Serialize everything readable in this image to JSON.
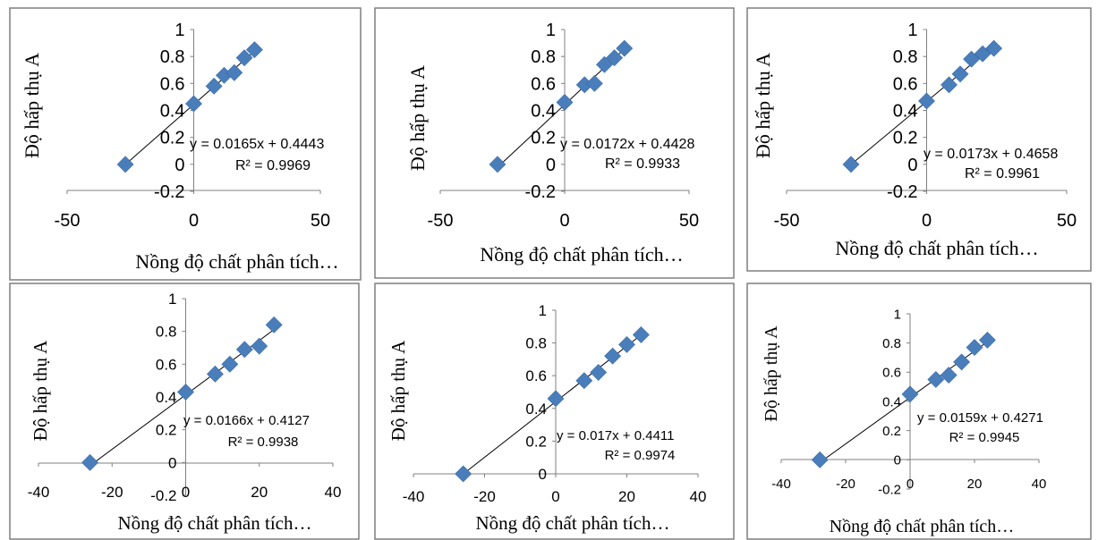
{
  "chart_data": [
    {
      "type": "scatter",
      "xlabel": "Nồng độ chất phân tích…",
      "ylabel": "Độ hấp thụ A",
      "xlim": [
        -50,
        50
      ],
      "ylim": [
        -0.2,
        1
      ],
      "x_ticks": [
        "-50",
        "0",
        "50"
      ],
      "y_ticks": [
        "-0.2",
        "0",
        "0.2",
        "0.4",
        "0.6",
        "0.8",
        "1"
      ],
      "points": [
        [
          -27,
          0
        ],
        [
          0,
          0.45
        ],
        [
          8,
          0.58
        ],
        [
          12,
          0.66
        ],
        [
          16,
          0.68
        ],
        [
          20,
          0.79
        ],
        [
          24,
          0.85
        ]
      ],
      "trendline": {
        "slope": 0.0165,
        "intercept": 0.4443
      },
      "equation": "y = 0.0165x + 0.4443",
      "r2": "R² = 0.9969",
      "grid": false,
      "marker_color": "#4a7ebb"
    },
    {
      "type": "scatter",
      "xlabel": "Nồng độ chất phân tích…",
      "ylabel": "Độ hấp thụ A",
      "xlim": [
        -50,
        50
      ],
      "ylim": [
        -0.2,
        1
      ],
      "x_ticks": [
        "-50",
        "0",
        "50"
      ],
      "y_ticks": [
        "-0.2",
        "0",
        "0.2",
        "0.4",
        "0.6",
        "0.8",
        "1"
      ],
      "points": [
        [
          -27,
          0
        ],
        [
          0,
          0.46
        ],
        [
          8,
          0.59
        ],
        [
          12,
          0.6
        ],
        [
          16,
          0.74
        ],
        [
          20,
          0.79
        ],
        [
          24,
          0.86
        ]
      ],
      "trendline": {
        "slope": 0.0172,
        "intercept": 0.4428
      },
      "equation": "y = 0.0172x + 0.4428",
      "r2": "R² = 0.9933",
      "grid": false,
      "marker_color": "#4a7ebb"
    },
    {
      "type": "scatter",
      "xlabel": "Nồng độ chất phân tích…",
      "ylabel": "Độ hấp thụ A",
      "xlim": [
        -50,
        50
      ],
      "ylim": [
        -0.2,
        1
      ],
      "x_ticks": [
        "-50",
        "0",
        "50"
      ],
      "y_ticks": [
        "-0.2",
        "0",
        "0.2",
        "0.4",
        "0.6",
        "0.8",
        "1"
      ],
      "points": [
        [
          -27,
          0
        ],
        [
          0,
          0.47
        ],
        [
          8,
          0.59
        ],
        [
          12,
          0.67
        ],
        [
          16,
          0.78
        ],
        [
          20,
          0.82
        ],
        [
          24,
          0.86
        ]
      ],
      "trendline": {
        "slope": 0.0173,
        "intercept": 0.4658
      },
      "equation": "y = 0.0173x + 0.4658",
      "r2": "R² = 0.9961",
      "grid": false,
      "marker_color": "#4a7ebb"
    },
    {
      "type": "scatter",
      "xlabel": "Nồng độ chất phân tích…",
      "ylabel": "Độ hấp thụ A",
      "xlim": [
        -40,
        40
      ],
      "ylim": [
        -0.2,
        1
      ],
      "x_ticks": [
        "-40",
        "-20",
        "0",
        "20",
        "40"
      ],
      "y_ticks": [
        "-0.2",
        "0",
        "0.2",
        "0.4",
        "0.6",
        "0.8",
        "1"
      ],
      "points": [
        [
          -26,
          0
        ],
        [
          0,
          0.43
        ],
        [
          8,
          0.54
        ],
        [
          12,
          0.6
        ],
        [
          16,
          0.69
        ],
        [
          20,
          0.71
        ],
        [
          24,
          0.84
        ]
      ],
      "trendline": {
        "slope": 0.0166,
        "intercept": 0.4127
      },
      "equation": "y = 0.0166x + 0.4127",
      "r2": "R² = 0.9938",
      "grid": false,
      "marker_color": "#4a7ebb"
    },
    {
      "type": "scatter",
      "xlabel": "Nồng độ chất phân tích…",
      "ylabel": "Độ hấp thụ A",
      "xlim": [
        -40,
        40
      ],
      "ylim": [
        0,
        1
      ],
      "x_ticks": [
        "-40",
        "-20",
        "0",
        "20",
        "40"
      ],
      "y_ticks": [
        "0",
        "0.2",
        "0.4",
        "0.6",
        "0.8",
        "1"
      ],
      "points": [
        [
          -26,
          0
        ],
        [
          0,
          0.46
        ],
        [
          8,
          0.57
        ],
        [
          12,
          0.62
        ],
        [
          16,
          0.72
        ],
        [
          20,
          0.79
        ],
        [
          24,
          0.85
        ]
      ],
      "trendline": {
        "slope": 0.017,
        "intercept": 0.4411
      },
      "equation": "y = 0.017x + 0.4411",
      "r2": "R² = 0.9974",
      "grid": false,
      "marker_color": "#4a7ebb"
    },
    {
      "type": "scatter",
      "xlabel": "Nồng độ chất phân tích…",
      "ylabel": "Độ hấp thụ A",
      "xlim": [
        -40,
        40
      ],
      "ylim": [
        -0.2,
        1
      ],
      "x_ticks": [
        "-40",
        "-20",
        "0",
        "20",
        "40"
      ],
      "y_ticks": [
        "-0.2",
        "0",
        "0.2",
        "0.4",
        "0.6",
        "0.8",
        "1"
      ],
      "points": [
        [
          -28,
          0
        ],
        [
          0,
          0.45
        ],
        [
          8,
          0.55
        ],
        [
          12,
          0.58
        ],
        [
          16,
          0.67
        ],
        [
          20,
          0.77
        ],
        [
          24,
          0.82
        ]
      ],
      "trendline": {
        "slope": 0.0159,
        "intercept": 0.4271
      },
      "equation": "y = 0.0159x + 0.4271",
      "r2": "R² = 0.9945",
      "grid": false,
      "marker_color": "#4a7ebb"
    }
  ]
}
